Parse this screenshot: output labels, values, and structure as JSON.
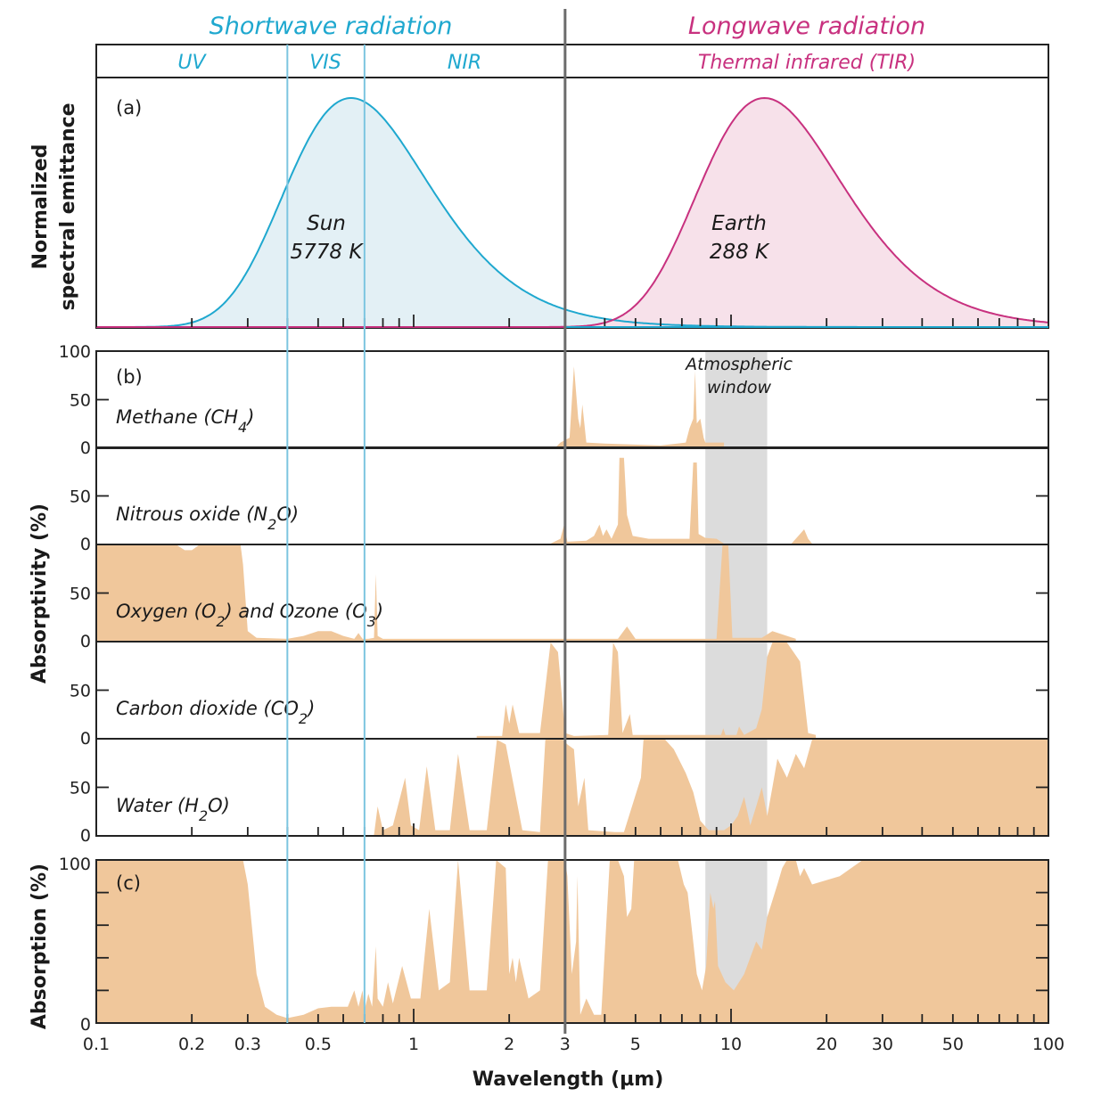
{
  "colors": {
    "shortwave": "#1fa8cf",
    "longwave": "#c8317f",
    "sun_fill": "#e3f0f5",
    "earth_fill": "#f7e1ea",
    "absorb_fill": "#f0c79b",
    "window_fill": "#dcdcdc",
    "vis_line": "#7cc5e0",
    "divider": "#6b6b6b",
    "axis": "#222222"
  },
  "header": {
    "shortwave_title": "Shortwave radiation",
    "longwave_title": "Longwave radiation",
    "bands": [
      {
        "label": "UV",
        "from": 0.1,
        "to": 0.4,
        "group": "shortwave"
      },
      {
        "label": "VIS",
        "from": 0.4,
        "to": 0.7,
        "group": "shortwave"
      },
      {
        "label": "NIR",
        "from": 0.7,
        "to": 3,
        "group": "shortwave"
      },
      {
        "label": "Thermal infrared (TIR)",
        "from": 3,
        "to": 100,
        "group": "longwave"
      }
    ]
  },
  "chart_data": [
    {
      "id": "a",
      "type": "area",
      "panel_tag": "(a)",
      "title": "",
      "ylabel_line1": "Normalized",
      "ylabel_line2": "spectral emittance",
      "xscale": "log",
      "xlim": [
        0.1,
        100
      ],
      "ylim": [
        0,
        1
      ],
      "series": [
        {
          "name": "Sun",
          "label_line1": "Sun",
          "label_line2": "5778 K",
          "peak_um": 0.5,
          "temperature_K": 5778,
          "color_key": "shortwave"
        },
        {
          "name": "Earth",
          "label_line1": "Earth",
          "label_line2": "288 K",
          "peak_um": 10,
          "temperature_K": 288,
          "color_key": "longwave"
        }
      ]
    },
    {
      "id": "b",
      "type": "area",
      "panel_tag": "(b)",
      "ylabel": "Absorptivity (%)",
      "xscale": "log",
      "xlim": [
        0.1,
        100
      ],
      "ylim": [
        0,
        100
      ],
      "yticks": [
        "0",
        "50",
        "100"
      ],
      "window_label_line1": "Atmospheric",
      "window_label_line2": "window",
      "window_range_um": [
        8.3,
        13
      ],
      "series": [
        {
          "name": "Methane (CH4)",
          "label_pre": "Methane (CH",
          "label_sub": "4",
          "label_post": ")",
          "points": [
            [
              2.8,
              0
            ],
            [
              2.9,
              5
            ],
            [
              3.1,
              10
            ],
            [
              3.2,
              85
            ],
            [
              3.3,
              30
            ],
            [
              3.35,
              20
            ],
            [
              3.4,
              45
            ],
            [
              3.5,
              5
            ],
            [
              4,
              4
            ],
            [
              6,
              2
            ],
            [
              7.2,
              5
            ],
            [
              7.4,
              20
            ],
            [
              7.6,
              30
            ],
            [
              7.7,
              80
            ],
            [
              7.8,
              25
            ],
            [
              8,
              30
            ],
            [
              8.2,
              10
            ],
            [
              8.3,
              5
            ],
            [
              9.5,
              5
            ],
            [
              9.5,
              0
            ]
          ]
        },
        {
          "name": "Nitrous oxide (N2O)",
          "label_pre": "Nitrous oxide (N",
          "label_sub": "2",
          "label_post": "O)",
          "points": [
            [
              2.7,
              0
            ],
            [
              2.9,
              5
            ],
            [
              2.98,
              20
            ],
            [
              3.05,
              2
            ],
            [
              3.5,
              3
            ],
            [
              3.7,
              8
            ],
            [
              3.85,
              20
            ],
            [
              3.95,
              8
            ],
            [
              4.05,
              15
            ],
            [
              4.2,
              5
            ],
            [
              4.4,
              20
            ],
            [
              4.45,
              90
            ],
            [
              4.6,
              90
            ],
            [
              4.7,
              30
            ],
            [
              4.9,
              8
            ],
            [
              5.5,
              5
            ],
            [
              7.4,
              5
            ],
            [
              7.6,
              85
            ],
            [
              7.8,
              85
            ],
            [
              7.9,
              10
            ],
            [
              8.3,
              6
            ],
            [
              9,
              5
            ],
            [
              9.5,
              0
            ],
            [
              15.5,
              0
            ],
            [
              16.5,
              10
            ],
            [
              17,
              15
            ],
            [
              17.5,
              5
            ],
            [
              18,
              0
            ]
          ]
        },
        {
          "name": "Oxygen (O2) and Ozone (O3)",
          "label_pre": "Oxygen (O",
          "label_sub": "2",
          "label_mid": ") and Ozone (O",
          "label_sub2": "3",
          "label_post": ")",
          "points": [
            [
              0.1,
              100
            ],
            [
              0.18,
              100
            ],
            [
              0.19,
              95
            ],
            [
              0.2,
              95
            ],
            [
              0.21,
              100
            ],
            [
              0.285,
              100
            ],
            [
              0.29,
              80
            ],
            [
              0.3,
              10
            ],
            [
              0.32,
              3
            ],
            [
              0.4,
              2
            ],
            [
              0.45,
              5
            ],
            [
              0.5,
              10
            ],
            [
              0.55,
              10
            ],
            [
              0.6,
              5
            ],
            [
              0.65,
              2
            ],
            [
              0.67,
              8
            ],
            [
              0.69,
              2
            ],
            [
              0.72,
              2
            ],
            [
              0.75,
              3
            ],
            [
              0.76,
              70
            ],
            [
              0.77,
              5
            ],
            [
              0.8,
              2
            ],
            [
              3,
              2
            ],
            [
              4.4,
              2
            ],
            [
              4.7,
              15
            ],
            [
              5,
              2
            ],
            [
              9,
              2
            ],
            [
              9.4,
              100
            ],
            [
              9.8,
              100
            ],
            [
              10.1,
              3
            ],
            [
              12.5,
              3
            ],
            [
              13.5,
              10
            ],
            [
              15,
              5
            ],
            [
              16,
              2
            ],
            [
              16,
              0
            ]
          ]
        },
        {
          "name": "Carbon dioxide (CO2)",
          "label_pre": "Carbon dioxide (CO",
          "label_sub": "2",
          "label_post": ")",
          "points": [
            [
              1.58,
              0
            ],
            [
              1.58,
              2
            ],
            [
              1.9,
              2
            ],
            [
              1.95,
              35
            ],
            [
              2.0,
              15
            ],
            [
              2.05,
              35
            ],
            [
              2.15,
              5
            ],
            [
              2.5,
              5
            ],
            [
              2.7,
              100
            ],
            [
              2.85,
              90
            ],
            [
              3.0,
              5
            ],
            [
              3.2,
              2
            ],
            [
              4.1,
              3
            ],
            [
              4.25,
              100
            ],
            [
              4.4,
              90
            ],
            [
              4.55,
              5
            ],
            [
              4.8,
              25
            ],
            [
              4.9,
              3
            ],
            [
              8,
              3
            ],
            [
              9.3,
              3
            ],
            [
              9.45,
              10
            ],
            [
              9.6,
              3
            ],
            [
              10.4,
              3
            ],
            [
              10.6,
              12
            ],
            [
              11,
              3
            ],
            [
              12,
              10
            ],
            [
              12.5,
              30
            ],
            [
              13,
              85
            ],
            [
              13.5,
              100
            ],
            [
              15,
              100
            ],
            [
              16.5,
              80
            ],
            [
              17.5,
              5
            ],
            [
              18.5,
              3
            ],
            [
              18.5,
              0
            ]
          ]
        },
        {
          "name": "Water (H2O)",
          "label_pre": "Water (H",
          "label_sub": "2",
          "label_post": "O)",
          "points": [
            [
              0.72,
              0
            ],
            [
              0.75,
              0
            ],
            [
              0.77,
              30
            ],
            [
              0.8,
              5
            ],
            [
              0.86,
              10
            ],
            [
              0.94,
              60
            ],
            [
              0.98,
              10
            ],
            [
              1.04,
              5
            ],
            [
              1.1,
              72
            ],
            [
              1.17,
              5
            ],
            [
              1.3,
              5
            ],
            [
              1.38,
              85
            ],
            [
              1.5,
              5
            ],
            [
              1.7,
              5
            ],
            [
              1.83,
              100
            ],
            [
              1.95,
              95
            ],
            [
              2.2,
              5
            ],
            [
              2.5,
              3
            ],
            [
              2.6,
              100
            ],
            [
              2.95,
              100
            ],
            [
              3.05,
              95
            ],
            [
              3.2,
              90
            ],
            [
              3.3,
              30
            ],
            [
              3.45,
              60
            ],
            [
              3.55,
              5
            ],
            [
              4.3,
              3
            ],
            [
              4.6,
              3
            ],
            [
              5.2,
              60
            ],
            [
              5.3,
              100
            ],
            [
              6.2,
              100
            ],
            [
              6.6,
              90
            ],
            [
              7.2,
              65
            ],
            [
              7.6,
              45
            ],
            [
              8,
              15
            ],
            [
              8.5,
              5
            ],
            [
              9.5,
              5
            ],
            [
              10,
              10
            ],
            [
              10.5,
              20
            ],
            [
              11,
              40
            ],
            [
              11.5,
              10
            ],
            [
              12,
              30
            ],
            [
              12.5,
              50
            ],
            [
              13,
              20
            ],
            [
              13.5,
              50
            ],
            [
              14,
              80
            ],
            [
              15,
              60
            ],
            [
              16,
              85
            ],
            [
              17,
              70
            ],
            [
              18,
              100
            ],
            [
              100,
              100
            ]
          ]
        }
      ]
    },
    {
      "id": "c",
      "type": "area",
      "panel_tag": "(c)",
      "ylabel": "Absorption (%)",
      "xlabel": "Wavelength (µm)",
      "xscale": "log",
      "xlim": [
        0.1,
        100
      ],
      "ylim": [
        0,
        100
      ],
      "yticks": [
        "0",
        "100"
      ],
      "xticks": [
        "0.1",
        "0.2",
        "0.3",
        "0.5",
        "1",
        "2",
        "3",
        "5",
        "10",
        "20",
        "30",
        "50",
        "100"
      ],
      "xtick_values": [
        0.1,
        0.2,
        0.3,
        0.5,
        1,
        2,
        3,
        5,
        10,
        20,
        30,
        50,
        100
      ],
      "points": [
        [
          0.1,
          100
        ],
        [
          0.29,
          100
        ],
        [
          0.3,
          85
        ],
        [
          0.32,
          30
        ],
        [
          0.34,
          10
        ],
        [
          0.37,
          5
        ],
        [
          0.4,
          3
        ],
        [
          0.45,
          5
        ],
        [
          0.5,
          9
        ],
        [
          0.55,
          10
        ],
        [
          0.62,
          10
        ],
        [
          0.65,
          20
        ],
        [
          0.67,
          10
        ],
        [
          0.69,
          20
        ],
        [
          0.7,
          8
        ],
        [
          0.72,
          18
        ],
        [
          0.74,
          10
        ],
        [
          0.76,
          47
        ],
        [
          0.77,
          15
        ],
        [
          0.8,
          10
        ],
        [
          0.83,
          25
        ],
        [
          0.86,
          12
        ],
        [
          0.92,
          35
        ],
        [
          0.98,
          15
        ],
        [
          1.05,
          15
        ],
        [
          1.12,
          70
        ],
        [
          1.2,
          20
        ],
        [
          1.3,
          25
        ],
        [
          1.38,
          100
        ],
        [
          1.5,
          20
        ],
        [
          1.7,
          20
        ],
        [
          1.82,
          100
        ],
        [
          1.95,
          95
        ],
        [
          2.0,
          30
        ],
        [
          2.05,
          40
        ],
        [
          2.1,
          25
        ],
        [
          2.15,
          40
        ],
        [
          2.3,
          15
        ],
        [
          2.5,
          20
        ],
        [
          2.65,
          100
        ],
        [
          3.0,
          100
        ],
        [
          3.05,
          90
        ],
        [
          3.15,
          30
        ],
        [
          3.25,
          50
        ],
        [
          3.28,
          90
        ],
        [
          3.35,
          5
        ],
        [
          3.5,
          15
        ],
        [
          3.7,
          5
        ],
        [
          3.9,
          5
        ],
        [
          4.15,
          100
        ],
        [
          4.4,
          100
        ],
        [
          4.6,
          90
        ],
        [
          4.7,
          65
        ],
        [
          4.85,
          70
        ],
        [
          4.95,
          100
        ],
        [
          6.8,
          100
        ],
        [
          7.1,
          85
        ],
        [
          7.3,
          80
        ],
        [
          7.5,
          60
        ],
        [
          7.8,
          30
        ],
        [
          8.1,
          20
        ],
        [
          8.35,
          35
        ],
        [
          8.6,
          80
        ],
        [
          8.8,
          70
        ],
        [
          8.9,
          75
        ],
        [
          9.1,
          35
        ],
        [
          9.6,
          25
        ],
        [
          10.2,
          20
        ],
        [
          11,
          30
        ],
        [
          12,
          50
        ],
        [
          12.5,
          45
        ],
        [
          13,
          65
        ],
        [
          14,
          85
        ],
        [
          14.5,
          95
        ],
        [
          15,
          100
        ],
        [
          16,
          100
        ],
        [
          16.5,
          90
        ],
        [
          17,
          95
        ],
        [
          17.5,
          90
        ],
        [
          18,
          85
        ],
        [
          22,
          90
        ],
        [
          26,
          100
        ],
        [
          100,
          100
        ]
      ]
    }
  ],
  "divider_um": 3,
  "vis_lines_um": [
    0.4,
    0.7
  ]
}
